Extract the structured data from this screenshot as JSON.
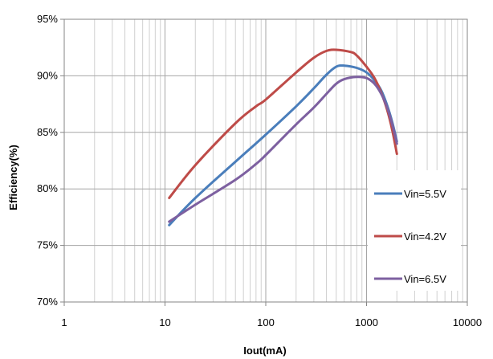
{
  "chart_data": {
    "type": "line",
    "xlabel": "Iout(mA)",
    "ylabel": "Efficiency(%)",
    "x_scale": "log",
    "xlim": [
      1,
      10000
    ],
    "ylim": [
      70,
      95
    ],
    "x_ticks": [
      1,
      10,
      100,
      1000,
      10000
    ],
    "x_tick_labels": [
      "1",
      "10",
      "100",
      "1000",
      "10000"
    ],
    "y_ticks": [
      70,
      75,
      80,
      85,
      90,
      95
    ],
    "y_tick_labels": [
      "70%",
      "75%",
      "80%",
      "85%",
      "90%",
      "95%"
    ],
    "grid": "major and minor vertical, major horizontal",
    "legend_position": "right",
    "series": [
      {
        "name": "Vin=5.5V",
        "color": "#4a7ebb",
        "points": [
          [
            11,
            76.8
          ],
          [
            20,
            79.2
          ],
          [
            50,
            82.4
          ],
          [
            100,
            84.8
          ],
          [
            200,
            87.3
          ],
          [
            300,
            88.9
          ],
          [
            400,
            90.1
          ],
          [
            500,
            90.8
          ],
          [
            600,
            90.9
          ],
          [
            800,
            90.7
          ],
          [
            1000,
            90.3
          ],
          [
            1200,
            89.6
          ],
          [
            1400,
            88.7
          ],
          [
            1600,
            87.4
          ],
          [
            1800,
            85.9
          ],
          [
            2000,
            84.2
          ]
        ]
      },
      {
        "name": "Vin=4.2V",
        "color": "#be4b48",
        "points": [
          [
            11,
            79.2
          ],
          [
            20,
            82.1
          ],
          [
            50,
            85.8
          ],
          [
            80,
            87.3
          ],
          [
            100,
            87.9
          ],
          [
            200,
            90.3
          ],
          [
            300,
            91.6
          ],
          [
            400,
            92.2
          ],
          [
            500,
            92.3
          ],
          [
            700,
            92.1
          ],
          [
            800,
            91.8
          ],
          [
            1000,
            90.8
          ],
          [
            1200,
            89.8
          ],
          [
            1400,
            88.5
          ],
          [
            1600,
            87.0
          ],
          [
            1800,
            85.2
          ],
          [
            2000,
            83.1
          ]
        ]
      },
      {
        "name": "Vin=6.5V",
        "color": "#7d60a0",
        "points": [
          [
            11,
            77.1
          ],
          [
            20,
            78.6
          ],
          [
            50,
            80.8
          ],
          [
            80,
            82.2
          ],
          [
            100,
            83.0
          ],
          [
            200,
            85.7
          ],
          [
            300,
            87.2
          ],
          [
            400,
            88.4
          ],
          [
            500,
            89.3
          ],
          [
            600,
            89.7
          ],
          [
            800,
            89.9
          ],
          [
            1000,
            89.8
          ],
          [
            1200,
            89.3
          ],
          [
            1400,
            88.4
          ],
          [
            1600,
            87.2
          ],
          [
            1800,
            85.7
          ],
          [
            2000,
            84.0
          ]
        ]
      }
    ]
  }
}
